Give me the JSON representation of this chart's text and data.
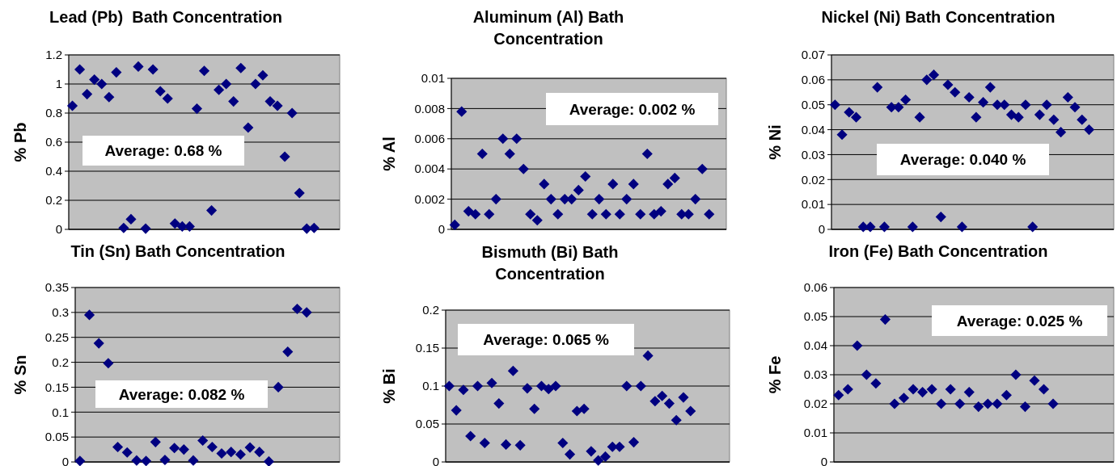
{
  "chart_data": [
    {
      "type": "scatter",
      "title": "Lead (Pb)  Bath Concentration",
      "ylabel": "% Pb",
      "color": "#000080",
      "marker": "diamond",
      "grid": "y",
      "tick_labels": "y",
      "ylim": [
        0,
        1.2
      ],
      "yticks": [
        0,
        0.2,
        0.4,
        0.6,
        0.8,
        1,
        1.2
      ],
      "annotations": [
        "Average: 0.68 %"
      ],
      "categories": [
        null,
        null,
        null,
        null,
        null,
        null,
        null,
        null,
        null,
        null,
        null,
        null,
        null,
        null,
        null,
        null,
        null,
        null,
        null,
        null,
        null,
        null,
        null,
        null,
        null,
        null,
        null,
        null,
        null,
        null,
        null,
        null,
        null,
        null,
        null,
        null,
        null
      ],
      "values": [
        0.85,
        1.1,
        0.93,
        1.03,
        1.0,
        0.91,
        1.08,
        0.01,
        0.07,
        1.12,
        0.005,
        1.1,
        0.95,
        0.9,
        0.04,
        0.02,
        0.02,
        0.83,
        1.09,
        0.13,
        0.96,
        1.0,
        0.88,
        1.11,
        0.7,
        1.0,
        1.06,
        0.88,
        0.85,
        0.5,
        0.8,
        0.25,
        0.005,
        0.01,
        null,
        null,
        null
      ]
    },
    {
      "type": "scatter",
      "title": "Aluminum (Al) Bath Concentration",
      "ylabel": "% Al",
      "color": "#000080",
      "marker": "diamond",
      "grid": "y",
      "tick_labels": "y",
      "ylim": [
        0,
        0.01
      ],
      "yticks": [
        0,
        0.002,
        0.004,
        0.006,
        0.008,
        0.01
      ],
      "annotations": [
        "Average: 0.002 %"
      ],
      "categories": [
        null,
        null,
        null,
        null,
        null,
        null,
        null,
        null,
        null,
        null,
        null,
        null,
        null,
        null,
        null,
        null,
        null,
        null,
        null,
        null,
        null,
        null,
        null,
        null,
        null,
        null,
        null,
        null,
        null,
        null,
        null,
        null,
        null,
        null,
        null,
        null,
        null,
        null,
        null,
        null
      ],
      "values": [
        0.0003,
        0.0078,
        0.0012,
        0.001,
        0.005,
        0.001,
        0.002,
        0.006,
        0.005,
        0.006,
        0.004,
        0.001,
        0.0006,
        0.003,
        0.002,
        0.001,
        0.002,
        0.002,
        0.0026,
        0.0035,
        0.001,
        0.002,
        0.001,
        0.003,
        0.001,
        0.002,
        0.003,
        0.001,
        0.005,
        0.001,
        0.0012,
        0.003,
        0.0034,
        0.001,
        0.001,
        0.002,
        0.004,
        0.001,
        null,
        null
      ]
    },
    {
      "type": "scatter",
      "title": "Nickel (Ni) Bath Concentration",
      "ylabel": "% Ni",
      "color": "#000080",
      "marker": "diamond",
      "grid": "y",
      "tick_labels": "y",
      "ylim": [
        0,
        0.07
      ],
      "yticks": [
        0,
        0.01,
        0.02,
        0.03,
        0.04,
        0.05,
        0.06,
        0.07
      ],
      "annotations": [
        "Average: 0.040 %"
      ],
      "categories": [
        null,
        null,
        null,
        null,
        null,
        null,
        null,
        null,
        null,
        null,
        null,
        null,
        null,
        null,
        null,
        null,
        null,
        null,
        null,
        null,
        null,
        null,
        null,
        null,
        null,
        null,
        null,
        null,
        null,
        null,
        null,
        null,
        null,
        null,
        null,
        null,
        null,
        null,
        null,
        null
      ],
      "values": [
        0.05,
        0.038,
        0.047,
        0.045,
        0.001,
        0.001,
        0.057,
        0.001,
        0.049,
        0.049,
        0.052,
        0.001,
        0.045,
        0.06,
        0.062,
        0.005,
        0.058,
        0.055,
        0.001,
        0.053,
        0.045,
        0.051,
        0.057,
        0.05,
        0.05,
        0.046,
        0.045,
        0.05,
        0.001,
        0.046,
        0.05,
        0.044,
        0.039,
        0.053,
        0.049,
        0.044,
        0.04,
        null,
        null,
        null
      ]
    },
    {
      "type": "scatter",
      "title": "Tin (Sn) Bath Concentration",
      "ylabel": "% Sn",
      "color": "#000080",
      "marker": "diamond",
      "grid": "y",
      "tick_labels": "y",
      "ylim": [
        0,
        0.35
      ],
      "yticks": [
        0,
        0.05,
        0.1,
        0.15,
        0.2,
        0.25,
        0.3,
        0.35
      ],
      "annotations": [
        "Average: 0.082 %"
      ],
      "categories": [
        null,
        null,
        null,
        null,
        null,
        null,
        null,
        null,
        null,
        null,
        null,
        null,
        null,
        null,
        null,
        null,
        null,
        null,
        null,
        null,
        null,
        null,
        null,
        null,
        null,
        null,
        null,
        null
      ],
      "values": [
        0.002,
        0.295,
        0.238,
        0.198,
        0.03,
        0.019,
        0.003,
        0.002,
        0.04,
        0.004,
        0.028,
        0.025,
        0.003,
        0.043,
        0.03,
        0.017,
        0.02,
        0.015,
        0.029,
        0.02,
        0.001,
        0.15,
        0.221,
        0.307,
        0.3,
        null,
        null,
        null
      ]
    },
    {
      "type": "scatter",
      "title": "Bismuth (Bi) Bath Concentration",
      "ylabel": "% Bi",
      "color": "#000080",
      "marker": "diamond",
      "grid": "y",
      "tick_labels": "y",
      "ylim": [
        0,
        0.2
      ],
      "yticks": [
        0,
        0.05,
        0.1,
        0.15,
        0.2
      ],
      "annotations": [
        "Average: 0.065 %"
      ],
      "categories": [
        null,
        null,
        null,
        null,
        null,
        null,
        null,
        null,
        null,
        null,
        null,
        null,
        null,
        null,
        null,
        null,
        null,
        null,
        null,
        null,
        null,
        null,
        null,
        null,
        null,
        null,
        null,
        null,
        null,
        null,
        null,
        null,
        null,
        null,
        null,
        null,
        null,
        null,
        null,
        null
      ],
      "values": [
        0.1,
        0.068,
        0.095,
        0.034,
        0.1,
        0.025,
        0.104,
        0.077,
        0.023,
        0.12,
        0.022,
        0.097,
        0.07,
        0.1,
        0.096,
        0.1,
        0.025,
        0.01,
        0.067,
        0.07,
        0.014,
        0.002,
        0.007,
        0.02,
        0.02,
        0.1,
        0.026,
        0.1,
        0.14,
        0.08,
        0.087,
        0.077,
        0.055,
        0.085,
        0.067,
        null,
        null,
        null,
        null,
        null
      ]
    },
    {
      "type": "scatter",
      "title": "Iron (Fe) Bath Concentration",
      "ylabel": "% Fe",
      "color": "#000080",
      "marker": "diamond",
      "grid": "y",
      "tick_labels": "y",
      "ylim": [
        0,
        0.06
      ],
      "yticks": [
        0,
        0.01,
        0.02,
        0.03,
        0.04,
        0.05,
        0.06
      ],
      "annotations": [
        "Average: 0.025 %"
      ],
      "categories": [
        null,
        null,
        null,
        null,
        null,
        null,
        null,
        null,
        null,
        null,
        null,
        null,
        null,
        null,
        null,
        null,
        null,
        null,
        null,
        null,
        null,
        null,
        null,
        null,
        null,
        null,
        null,
        null,
        null,
        null
      ],
      "values": [
        0.023,
        0.025,
        0.04,
        0.03,
        0.027,
        0.049,
        0.02,
        0.022,
        0.025,
        0.024,
        0.025,
        0.02,
        0.025,
        0.02,
        0.024,
        0.019,
        0.02,
        0.02,
        0.023,
        0.03,
        0.019,
        0.028,
        0.025,
        0.02,
        null,
        null,
        null,
        null,
        null,
        null
      ]
    }
  ]
}
